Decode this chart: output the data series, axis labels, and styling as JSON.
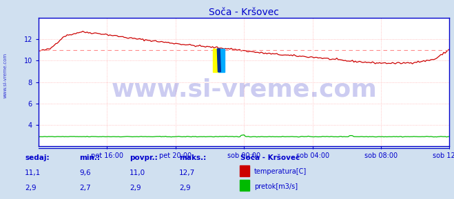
{
  "title": "Soča - Kršovec",
  "title_color": "#0000cc",
  "bg_color": "#d0e0f0",
  "plot_bg_color": "#ffffff",
  "grid_color": "#ffb0b0",
  "ylabel_left": "",
  "xlabel": "",
  "xlim": [
    0,
    288
  ],
  "ylim_temp": [
    2,
    14
  ],
  "yticks_temp": [
    4,
    6,
    8,
    10,
    12
  ],
  "avg_line_y": 11.0,
  "avg_line_color": "#ff8888",
  "temp_color": "#cc0000",
  "flow_color": "#00bb00",
  "axis_color": "#0000cc",
  "tick_color": "#0000cc",
  "watermark_text": "www.si-vreme.com",
  "watermark_color": "#0000bb",
  "watermark_alpha": 0.2,
  "watermark_fontsize": 26,
  "xtick_labels": [
    "pet 16:00",
    "pet 20:00",
    "sob 00:00",
    "sob 04:00",
    "sob 08:00",
    "sob 12:00"
  ],
  "xtick_positions": [
    48,
    96,
    144,
    192,
    240,
    288
  ],
  "legend_title": "Soča - Kršovec",
  "legend_items": [
    "temperatura[C]",
    "pretok[m3/s]"
  ],
  "legend_colors": [
    "#cc0000",
    "#00bb00"
  ],
  "stats_headers": [
    "sedaj:",
    "min.:",
    "povpr.:",
    "maks.:"
  ],
  "stats_temp": [
    "11,1",
    "9,6",
    "11,0",
    "12,7"
  ],
  "stats_flow": [
    "2,9",
    "2,7",
    "2,9",
    "2,9"
  ],
  "stats_color": "#0000cc",
  "sidebar_text": "www.si-vreme.com",
  "sidebar_color": "#0000cc",
  "logo_yellow": "#ffff00",
  "logo_cyan": "#00aaff",
  "logo_darkblue": "#003399"
}
